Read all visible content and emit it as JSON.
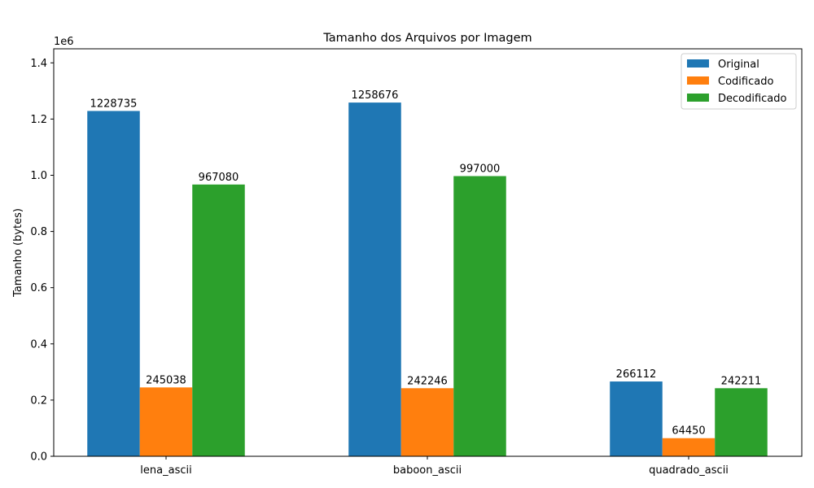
{
  "chart_data": {
    "type": "bar",
    "title": "Tamanho dos Arquivos por Imagem",
    "xlabel": "",
    "ylabel": "Tamanho (bytes)",
    "y_offset_label": "1e6",
    "y_scale": 1000000,
    "ylim": [
      0,
      1450000
    ],
    "yticks": [
      0,
      200000,
      400000,
      600000,
      800000,
      1000000,
      1200000,
      1400000
    ],
    "ytick_labels": [
      "0.0",
      "0.2",
      "0.4",
      "0.6",
      "0.8",
      "1.0",
      "1.2",
      "1.4"
    ],
    "grid": false,
    "legend_position": "top-right",
    "categories": [
      "lena_ascii",
      "baboon_ascii",
      "quadrado_ascii"
    ],
    "series": [
      {
        "name": "Original",
        "color": "#1f77b4",
        "values": [
          1228735,
          1258676,
          266112
        ]
      },
      {
        "name": "Codificado",
        "color": "#ff7f0e",
        "values": [
          245038,
          242246,
          64450
        ]
      },
      {
        "name": "Decodificado",
        "color": "#2ca02c",
        "values": [
          967080,
          997000,
          242211
        ]
      }
    ]
  }
}
